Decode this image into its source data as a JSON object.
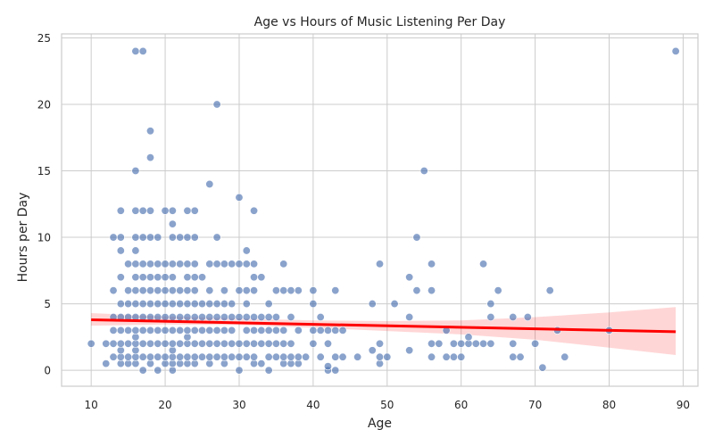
{
  "chart_data": {
    "type": "scatter",
    "title": "Age vs Hours of Music Listening Per Day",
    "xlabel": "Age",
    "ylabel": "Hours per Day",
    "xlim": [
      6,
      92
    ],
    "ylim": [
      -1.2,
      25.3
    ],
    "xticks": [
      10,
      20,
      30,
      40,
      50,
      60,
      70,
      80,
      90
    ],
    "yticks": [
      0,
      5,
      10,
      15,
      20,
      25
    ],
    "grid": true,
    "point_color": "#4c72b0",
    "trend_color": "#ff0000",
    "trend_line": {
      "x": [
        10,
        89
      ],
      "y": [
        3.8,
        2.9
      ]
    },
    "confidence_band": {
      "x": [
        10,
        20,
        30,
        40,
        50,
        60,
        70,
        80,
        89
      ],
      "upper": [
        4.3,
        4.05,
        3.9,
        3.75,
        3.7,
        3.75,
        4.0,
        4.35,
        4.75
      ],
      "lower": [
        3.35,
        3.45,
        3.4,
        3.2,
        2.95,
        2.7,
        2.3,
        1.7,
        1.15
      ]
    },
    "points": [
      [
        10,
        2
      ],
      [
        12,
        0.5
      ],
      [
        12,
        2
      ],
      [
        13,
        1
      ],
      [
        13,
        2
      ],
      [
        13,
        3
      ],
      [
        13,
        4
      ],
      [
        13,
        6
      ],
      [
        13,
        10
      ],
      [
        14,
        0.5
      ],
      [
        14,
        1
      ],
      [
        14,
        1.5
      ],
      [
        14,
        2
      ],
      [
        14,
        3
      ],
      [
        14,
        4
      ],
      [
        14,
        5
      ],
      [
        14,
        7
      ],
      [
        14,
        9
      ],
      [
        14,
        10
      ],
      [
        14,
        12
      ],
      [
        15,
        0.5
      ],
      [
        15,
        1
      ],
      [
        15,
        2
      ],
      [
        15,
        3
      ],
      [
        15,
        4
      ],
      [
        15,
        5
      ],
      [
        15,
        6
      ],
      [
        15,
        8
      ],
      [
        16,
        0.5
      ],
      [
        16,
        1
      ],
      [
        16,
        1.5
      ],
      [
        16,
        2
      ],
      [
        16,
        2.5
      ],
      [
        16,
        3
      ],
      [
        16,
        4
      ],
      [
        16,
        5
      ],
      [
        16,
        6
      ],
      [
        16,
        7
      ],
      [
        16,
        8
      ],
      [
        16,
        9
      ],
      [
        16,
        10
      ],
      [
        16,
        12
      ],
      [
        16,
        15
      ],
      [
        16,
        24
      ],
      [
        17,
        0
      ],
      [
        17,
        1
      ],
      [
        17,
        2
      ],
      [
        17,
        3
      ],
      [
        17,
        4
      ],
      [
        17,
        5
      ],
      [
        17,
        6
      ],
      [
        17,
        7
      ],
      [
        17,
        8
      ],
      [
        17,
        10
      ],
      [
        17,
        12
      ],
      [
        17,
        24
      ],
      [
        18,
        0.5
      ],
      [
        18,
        1
      ],
      [
        18,
        2
      ],
      [
        18,
        3
      ],
      [
        18,
        4
      ],
      [
        18,
        5
      ],
      [
        18,
        6
      ],
      [
        18,
        7
      ],
      [
        18,
        8
      ],
      [
        18,
        10
      ],
      [
        18,
        12
      ],
      [
        18,
        16
      ],
      [
        18,
        18
      ],
      [
        19,
        0
      ],
      [
        19,
        1
      ],
      [
        19,
        2
      ],
      [
        19,
        3
      ],
      [
        19,
        4
      ],
      [
        19,
        5
      ],
      [
        19,
        6
      ],
      [
        19,
        7
      ],
      [
        19,
        8
      ],
      [
        19,
        10
      ],
      [
        20,
        0.5
      ],
      [
        20,
        1
      ],
      [
        20,
        2
      ],
      [
        20,
        3
      ],
      [
        20,
        4
      ],
      [
        20,
        5
      ],
      [
        20,
        6
      ],
      [
        20,
        7
      ],
      [
        20,
        8
      ],
      [
        20,
        12
      ],
      [
        21,
        0
      ],
      [
        21,
        0.5
      ],
      [
        21,
        1
      ],
      [
        21,
        1.5
      ],
      [
        21,
        2
      ],
      [
        21,
        3
      ],
      [
        21,
        4
      ],
      [
        21,
        5
      ],
      [
        21,
        6
      ],
      [
        21,
        7
      ],
      [
        21,
        8
      ],
      [
        21,
        10
      ],
      [
        21,
        11
      ],
      [
        21,
        12
      ],
      [
        22,
        0.5
      ],
      [
        22,
        1
      ],
      [
        22,
        2
      ],
      [
        22,
        3
      ],
      [
        22,
        4
      ],
      [
        22,
        5
      ],
      [
        22,
        6
      ],
      [
        22,
        8
      ],
      [
        22,
        10
      ],
      [
        23,
        0.5
      ],
      [
        23,
        1
      ],
      [
        23,
        2
      ],
      [
        23,
        2.5
      ],
      [
        23,
        3
      ],
      [
        23,
        4
      ],
      [
        23,
        5
      ],
      [
        23,
        6
      ],
      [
        23,
        7
      ],
      [
        23,
        8
      ],
      [
        23,
        10
      ],
      [
        23,
        12
      ],
      [
        24,
        0.5
      ],
      [
        24,
        1
      ],
      [
        24,
        2
      ],
      [
        24,
        3
      ],
      [
        24,
        4
      ],
      [
        24,
        5
      ],
      [
        24,
        6
      ],
      [
        24,
        7
      ],
      [
        24,
        8
      ],
      [
        24,
        10
      ],
      [
        24,
        12
      ],
      [
        25,
        1
      ],
      [
        25,
        2
      ],
      [
        25,
        3
      ],
      [
        25,
        4
      ],
      [
        25,
        5
      ],
      [
        25,
        7
      ],
      [
        26,
        0.5
      ],
      [
        26,
        1
      ],
      [
        26,
        2
      ],
      [
        26,
        3
      ],
      [
        26,
        4
      ],
      [
        26,
        5
      ],
      [
        26,
        6
      ],
      [
        26,
        8
      ],
      [
        26,
        14
      ],
      [
        27,
        1
      ],
      [
        27,
        2
      ],
      [
        27,
        3
      ],
      [
        27,
        4
      ],
      [
        27,
        5
      ],
      [
        27,
        8
      ],
      [
        27,
        10
      ],
      [
        27,
        20
      ],
      [
        28,
        0.5
      ],
      [
        28,
        1
      ],
      [
        28,
        2
      ],
      [
        28,
        3
      ],
      [
        28,
        4
      ],
      [
        28,
        5
      ],
      [
        28,
        6
      ],
      [
        28,
        8
      ],
      [
        29,
        1
      ],
      [
        29,
        2
      ],
      [
        29,
        3
      ],
      [
        29,
        4
      ],
      [
        29,
        5
      ],
      [
        29,
        8
      ],
      [
        30,
        0
      ],
      [
        30,
        1
      ],
      [
        30,
        2
      ],
      [
        30,
        4
      ],
      [
        30,
        6
      ],
      [
        30,
        8
      ],
      [
        30,
        13
      ],
      [
        31,
        1
      ],
      [
        31,
        2
      ],
      [
        31,
        3
      ],
      [
        31,
        4
      ],
      [
        31,
        5
      ],
      [
        31,
        6
      ],
      [
        31,
        8
      ],
      [
        31,
        9
      ],
      [
        32,
        0.5
      ],
      [
        32,
        1
      ],
      [
        32,
        2
      ],
      [
        32,
        3
      ],
      [
        32,
        4
      ],
      [
        32,
        6
      ],
      [
        32,
        7
      ],
      [
        32,
        8
      ],
      [
        32,
        12
      ],
      [
        33,
        0.5
      ],
      [
        33,
        2
      ],
      [
        33,
        3
      ],
      [
        33,
        4
      ],
      [
        33,
        7
      ],
      [
        34,
        0
      ],
      [
        34,
        1
      ],
      [
        34,
        2
      ],
      [
        34,
        3
      ],
      [
        34,
        4
      ],
      [
        34,
        5
      ],
      [
        35,
        1
      ],
      [
        35,
        2
      ],
      [
        35,
        3
      ],
      [
        35,
        4
      ],
      [
        35,
        6
      ],
      [
        36,
        0.5
      ],
      [
        36,
        1
      ],
      [
        36,
        2
      ],
      [
        36,
        3
      ],
      [
        36,
        6
      ],
      [
        36,
        8
      ],
      [
        37,
        0.5
      ],
      [
        37,
        1
      ],
      [
        37,
        2
      ],
      [
        37,
        4
      ],
      [
        37,
        6
      ],
      [
        38,
        0.5
      ],
      [
        38,
        1
      ],
      [
        38,
        3
      ],
      [
        38,
        6
      ],
      [
        39,
        1
      ],
      [
        40,
        2
      ],
      [
        40,
        3
      ],
      [
        40,
        5
      ],
      [
        40,
        6
      ],
      [
        41,
        1
      ],
      [
        41,
        3
      ],
      [
        41,
        4
      ],
      [
        42,
        0
      ],
      [
        42,
        0.3
      ],
      [
        42,
        2
      ],
      [
        42,
        3
      ],
      [
        43,
        0
      ],
      [
        43,
        1
      ],
      [
        43,
        3
      ],
      [
        43,
        6
      ],
      [
        44,
        1
      ],
      [
        44,
        3
      ],
      [
        46,
        1
      ],
      [
        48,
        1.5
      ],
      [
        48,
        5
      ],
      [
        49,
        0.5
      ],
      [
        49,
        1
      ],
      [
        49,
        2
      ],
      [
        49,
        8
      ],
      [
        50,
        1
      ],
      [
        51,
        5
      ],
      [
        53,
        1.5
      ],
      [
        53,
        4
      ],
      [
        53,
        7
      ],
      [
        54,
        6
      ],
      [
        54,
        10
      ],
      [
        55,
        15
      ],
      [
        56,
        1
      ],
      [
        56,
        2
      ],
      [
        56,
        6
      ],
      [
        56,
        8
      ],
      [
        57,
        2
      ],
      [
        58,
        1
      ],
      [
        58,
        3
      ],
      [
        59,
        1
      ],
      [
        59,
        2
      ],
      [
        60,
        1
      ],
      [
        60,
        2
      ],
      [
        61,
        2
      ],
      [
        61,
        2.5
      ],
      [
        62,
        2
      ],
      [
        63,
        2
      ],
      [
        63,
        8
      ],
      [
        64,
        2
      ],
      [
        64,
        4
      ],
      [
        64,
        5
      ],
      [
        65,
        6
      ],
      [
        67,
        1
      ],
      [
        67,
        2
      ],
      [
        67,
        4
      ],
      [
        68,
        1
      ],
      [
        69,
        4
      ],
      [
        70,
        2
      ],
      [
        71,
        0.2
      ],
      [
        72,
        6
      ],
      [
        73,
        3
      ],
      [
        74,
        1
      ],
      [
        80,
        3
      ],
      [
        89,
        24
      ]
    ]
  }
}
